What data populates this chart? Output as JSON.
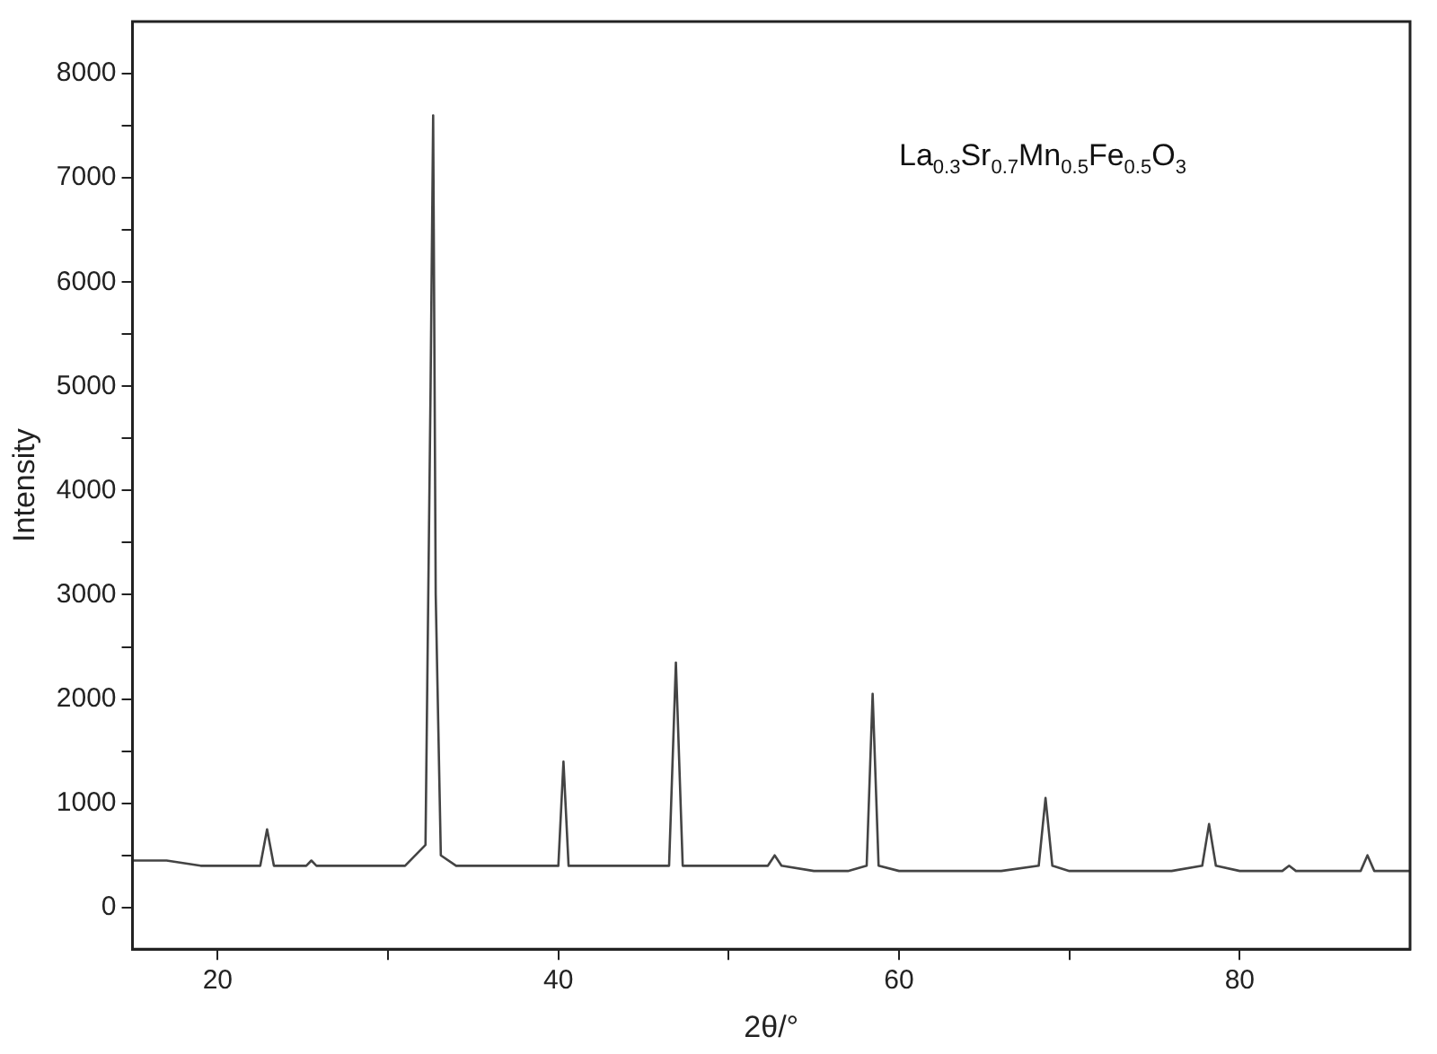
{
  "chart_data": {
    "type": "line",
    "xlabel": "2θ/°",
    "ylabel": "Intensity",
    "annotations": [
      "La$_{0.3}$Sr$_{0.7}$Mn$_{0.5}$Fe$_{0.5}$O$_{3}$"
    ],
    "xlim": [
      15,
      90
    ],
    "xticks": [
      20,
      {
        "value": 30,
        "label": null
      },
      40,
      {
        "value": 50,
        "label": null
      },
      60,
      {
        "value": 70,
        "label": null
      },
      80
    ],
    "ylim": [
      -400,
      8500
    ],
    "yticks": [
      0,
      {
        "value": 500,
        "label": null
      },
      1000,
      {
        "value": 1500,
        "label": null
      },
      2000,
      {
        "value": 2500,
        "label": null
      },
      3000,
      {
        "value": 3500,
        "label": null
      },
      4000,
      {
        "value": 4500,
        "label": null
      },
      5000,
      {
        "value": 5500,
        "label": null
      },
      6000,
      {
        "value": 6500,
        "label": null
      },
      7000,
      {
        "value": 7500,
        "label": null
      },
      8000
    ],
    "grid": false,
    "legend": false,
    "marker": "none",
    "line_style": "solid",
    "x": [
      15,
      17,
      19,
      21,
      22.5,
      22.9,
      23.3,
      24,
      25.2,
      25.5,
      25.8,
      27,
      29,
      31,
      32.2,
      32.5,
      32.65,
      32.8,
      33.1,
      34,
      36,
      38,
      40,
      40.3,
      40.6,
      42,
      44,
      46.5,
      46.9,
      47.3,
      48,
      50,
      52.3,
      52.7,
      53.1,
      55,
      57,
      58.1,
      58.45,
      58.8,
      60,
      62,
      64,
      66,
      68.2,
      68.6,
      69.0,
      70,
      72,
      74,
      76,
      77.8,
      78.2,
      78.6,
      80,
      82.5,
      82.9,
      83.3,
      85,
      87.1,
      87.5,
      87.9,
      89,
      90
    ],
    "series": [
      {
        "color": "#444444",
        "values": [
          450,
          450,
          400,
          400,
          400,
          750,
          400,
          400,
          400,
          450,
          400,
          400,
          400,
          400,
          600,
          5000,
          7600,
          3000,
          500,
          400,
          400,
          400,
          400,
          1400,
          400,
          400,
          400,
          400,
          2350,
          400,
          400,
          400,
          400,
          500,
          400,
          350,
          350,
          400,
          2050,
          400,
          350,
          350,
          350,
          350,
          400,
          1050,
          400,
          350,
          350,
          350,
          350,
          400,
          800,
          400,
          350,
          350,
          400,
          350,
          350,
          350,
          500,
          350,
          350,
          350
        ]
      }
    ]
  }
}
